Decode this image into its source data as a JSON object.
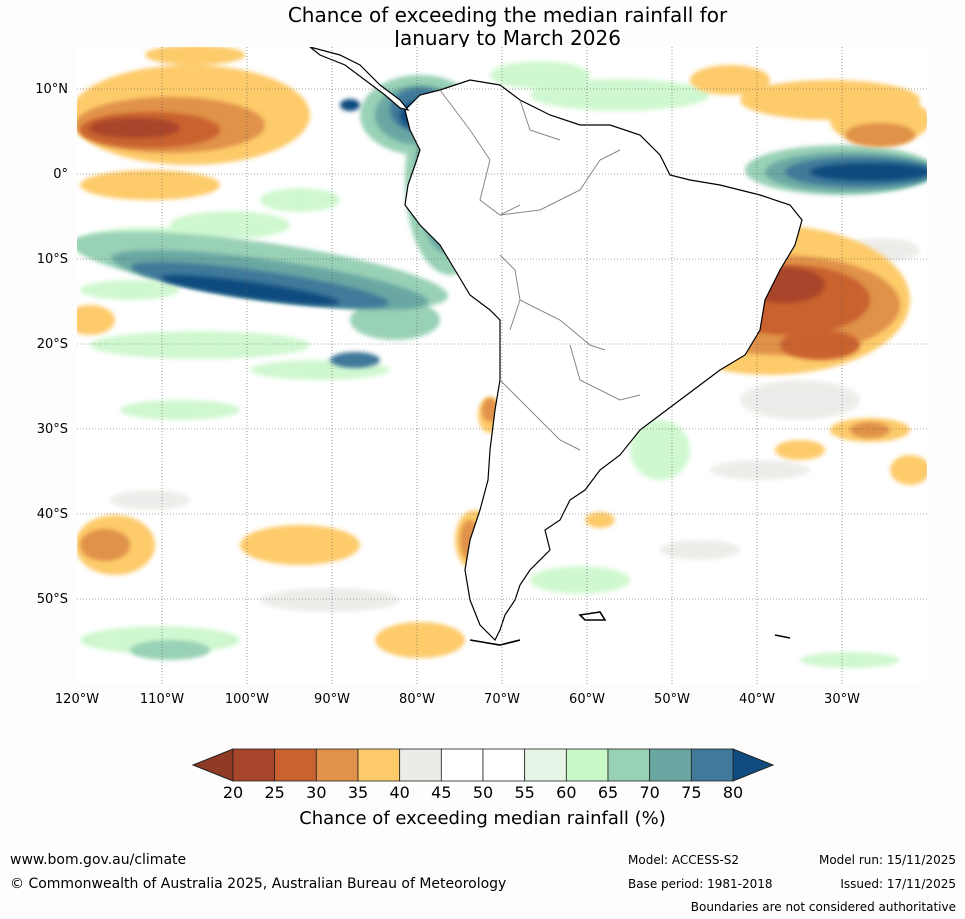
{
  "title": {
    "line1": "Chance of exceeding the median rainfall for",
    "line2": "January to March 2026"
  },
  "map": {
    "lat_labels": [
      "10°N",
      "0°",
      "10°S",
      "20°S",
      "30°S",
      "40°S",
      "50°S"
    ],
    "lon_labels": [
      "120°W",
      "110°W",
      "100°W",
      "90°W",
      "80°W",
      "70°W",
      "60°W",
      "50°W",
      "40°W",
      "30°W"
    ]
  },
  "colorbar": {
    "ticks": [
      "20",
      "25",
      "30",
      "35",
      "40",
      "45",
      "50",
      "55",
      "60",
      "65",
      "70",
      "75",
      "80"
    ],
    "colors": [
      "#a9452a",
      "#c9622f",
      "#e0924a",
      "#fdcb6a",
      "#ecebe8",
      "#ffffff",
      "#ffffff",
      "#e6f5e6",
      "#c8f7c8",
      "#99d1b6",
      "#6aa7a3",
      "#41799a"
    ],
    "low_color": "#8e3a25",
    "high_color": "#114b7f",
    "label": "Chance of exceeding median rainfall (%)"
  },
  "footer": {
    "website": "www.bom.gov.au/climate",
    "copyright": "© Commonwealth of Australia 2025, Australian Bureau of Meteorology",
    "model": "Model: ACCESS-S2",
    "base_period": "Base period: 1981-2018",
    "model_run": "Model run: 15/11/2025",
    "issued": "Issued: 17/11/2025",
    "disclaimer": "Boundaries are not considered authoritative"
  }
}
